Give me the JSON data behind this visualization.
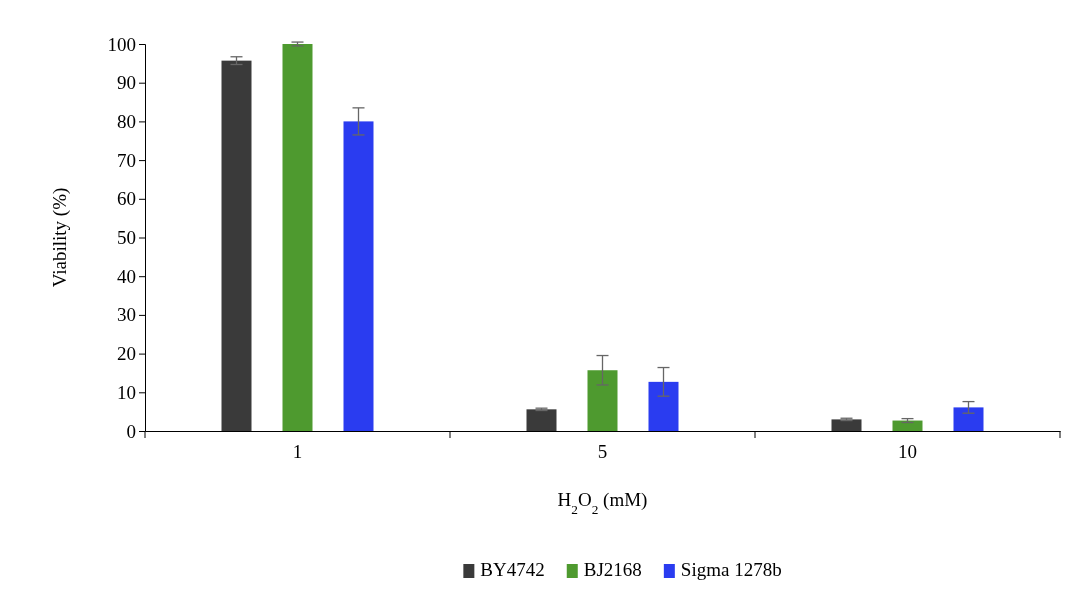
{
  "chart_data": {
    "type": "bar",
    "xlabel": "H$_{2}$O$_{2}$ (mM)",
    "ylabel": "Viability (%)",
    "categories": [
      "1",
      "5",
      "10"
    ],
    "series": [
      {
        "name": "BY4742",
        "color": "#3a3a3a",
        "values": [
          95.7,
          5.6,
          3.0
        ],
        "errors": [
          1,
          0.3,
          0.3
        ]
      },
      {
        "name": "BJ2168",
        "color": "#4e9a2f",
        "values": [
          100,
          15.7,
          2.7
        ],
        "errors": [
          0.5,
          3.8,
          0.5
        ]
      },
      {
        "name": "Sigma 1278b",
        "color": "#2a3cf0",
        "values": [
          80,
          12.7,
          6.1
        ],
        "errors": [
          3.5,
          3.7,
          1.5
        ]
      }
    ],
    "ylim": [
      0,
      100
    ],
    "yticks": [
      0,
      10,
      20,
      30,
      40,
      50,
      60,
      70,
      80,
      90,
      100
    ],
    "grid": false,
    "legend": "bottom"
  }
}
